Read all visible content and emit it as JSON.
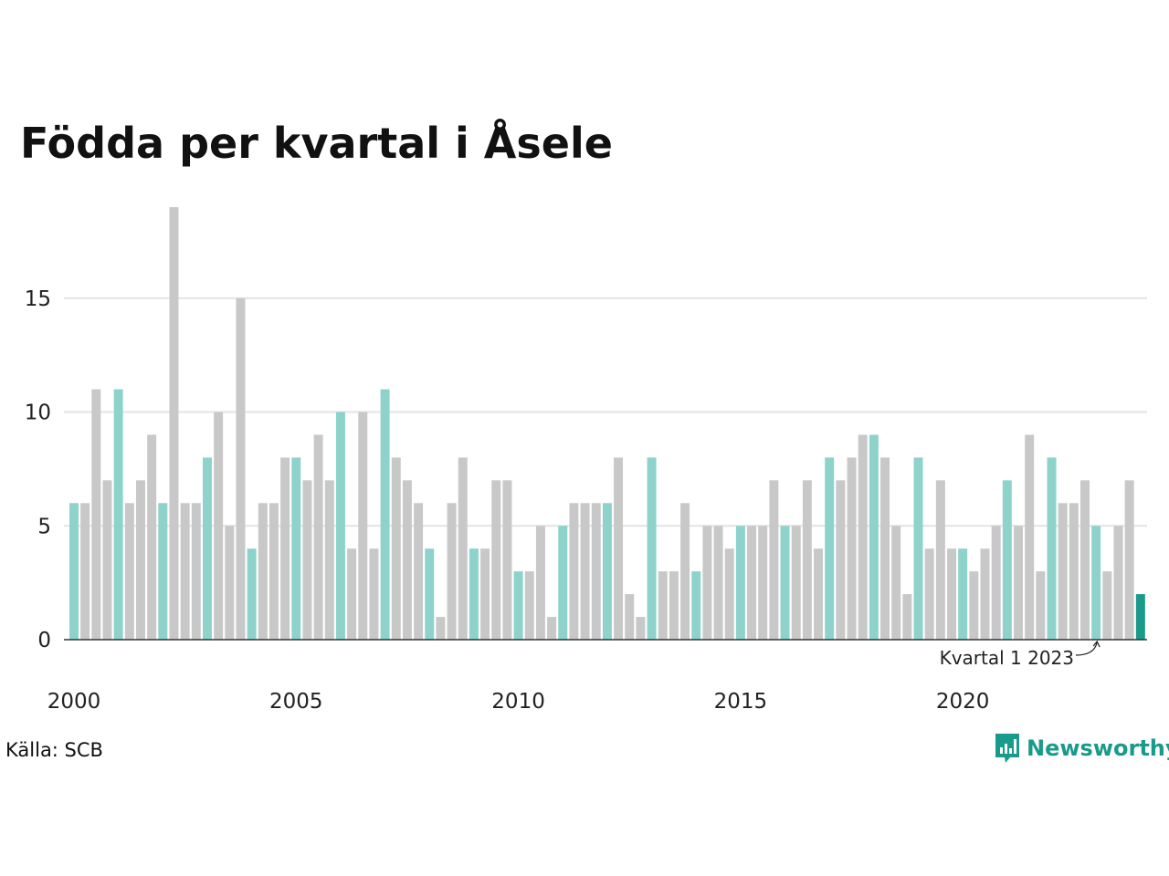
{
  "title": "Födda per kvartal i Åsele",
  "source": "Källa: SCB",
  "brand": "Newsworthy",
  "colors": {
    "bar_default": "#c8c8c8",
    "bar_highlight": "#8dd3cb",
    "bar_latest": "#1a9a8a",
    "grid": "#e3e3e3",
    "axis": "#333333",
    "brand": "#1a9a8a"
  },
  "chart_data": {
    "type": "bar",
    "title": "Födda per kvartal i Åsele",
    "xlabel": "",
    "ylabel": "",
    "ylim": [
      0,
      19
    ],
    "grid": true,
    "yticks": [
      0,
      5,
      10,
      15
    ],
    "xticks": [
      {
        "label": "2000",
        "year": 2000
      },
      {
        "label": "2005",
        "year": 2005
      },
      {
        "label": "2010",
        "year": 2010
      },
      {
        "label": "2015",
        "year": 2015
      },
      {
        "label": "2020",
        "year": 2020
      }
    ],
    "start_year": 2000,
    "highlight_quarter": 1,
    "values": [
      6,
      6,
      11,
      7,
      11,
      6,
      7,
      9,
      6,
      19,
      6,
      6,
      8,
      10,
      5,
      15,
      4,
      6,
      6,
      8,
      8,
      7,
      9,
      7,
      10,
      4,
      10,
      4,
      11,
      8,
      7,
      6,
      4,
      1,
      6,
      8,
      4,
      4,
      7,
      7,
      3,
      3,
      5,
      1,
      5,
      6,
      6,
      6,
      6,
      8,
      2,
      1,
      8,
      3,
      3,
      6,
      3,
      5,
      5,
      4,
      5,
      5,
      5,
      7,
      5,
      5,
      7,
      4,
      8,
      7,
      8,
      9,
      9,
      8,
      5,
      2,
      8,
      4,
      7,
      4,
      4,
      3,
      4,
      5,
      7,
      5,
      9,
      3,
      8,
      6,
      6,
      7,
      5,
      3,
      5,
      7,
      2
    ],
    "annotation": {
      "text": "Kvartal 1 2023",
      "index": 92
    }
  }
}
